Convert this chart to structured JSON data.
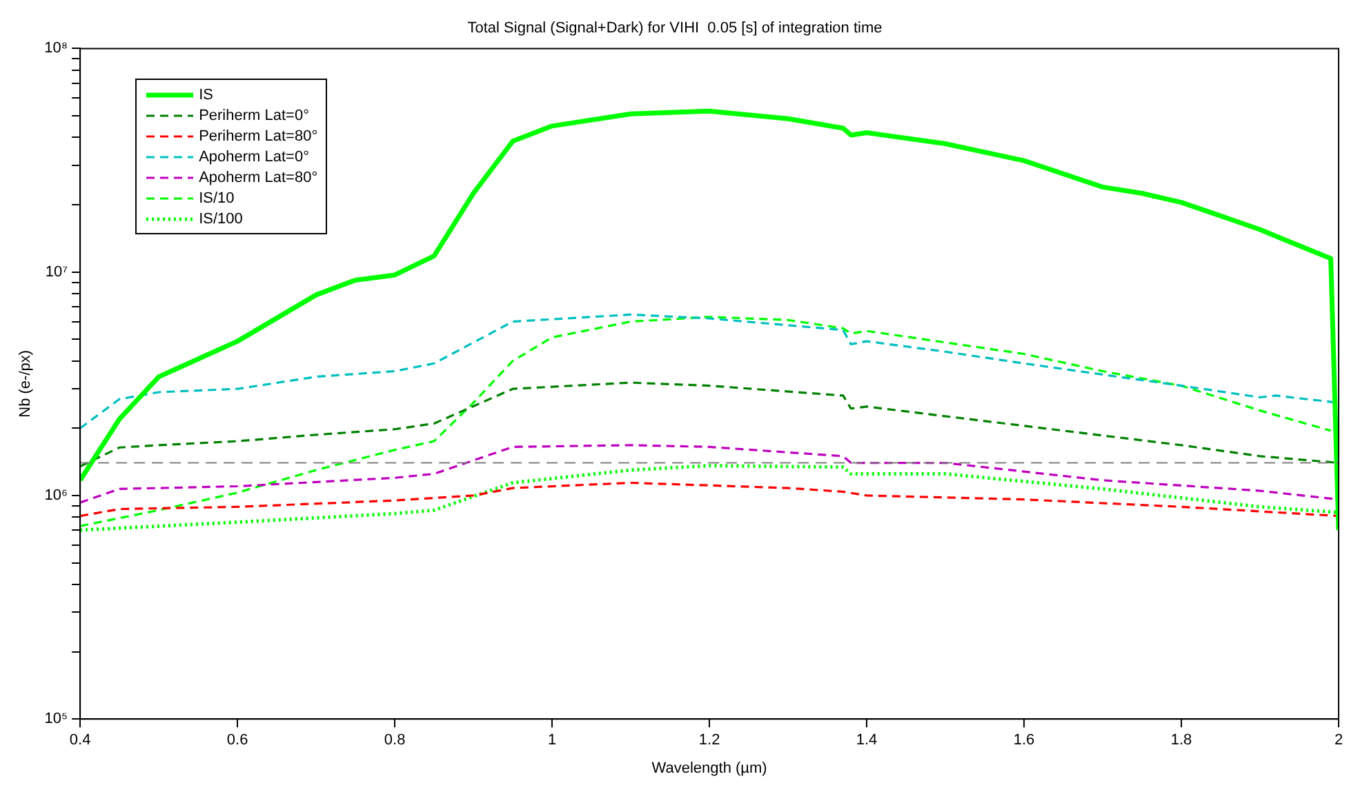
{
  "chart_data": {
    "type": "line",
    "title": "Total Signal (Signal+Dark) for VIHI  0.05 [s] of integration time",
    "xlabel": "Wavelength (µm)",
    "ylabel": "Nb (e-/px)",
    "log": "y",
    "grid": false,
    "legend": "top left",
    "marker": "none",
    "xlim": [
      0.4,
      2
    ],
    "xticks": [
      0.4,
      0.6,
      0.8,
      {
        "value": 1,
        "label": "1"
      },
      1.2,
      1.4,
      1.6,
      1.8,
      {
        "value": 2,
        "label": "2"
      }
    ],
    "ylim": [
      100000,
      100000000
    ],
    "yticks": [
      {
        "value": 100000,
        "label": "10⁵"
      },
      {
        "value": 200000,
        "label": null
      },
      {
        "value": 300000,
        "label": null
      },
      {
        "value": 400000,
        "label": null
      },
      {
        "value": 500000,
        "label": null
      },
      {
        "value": 600000,
        "label": null
      },
      {
        "value": 700000,
        "label": null
      },
      {
        "value": 800000,
        "label": null
      },
      {
        "value": 900000,
        "label": null
      },
      {
        "value": 1000000,
        "label": "10⁶"
      },
      {
        "value": 2000000,
        "label": null
      },
      {
        "value": 3000000,
        "label": null
      },
      {
        "value": 4000000,
        "label": null
      },
      {
        "value": 5000000,
        "label": null
      },
      {
        "value": 6000000,
        "label": null
      },
      {
        "value": 7000000,
        "label": null
      },
      {
        "value": 8000000,
        "label": null
      },
      {
        "value": 9000000,
        "label": null
      },
      {
        "value": 10000000,
        "label": "10⁷"
      },
      {
        "value": 20000000,
        "label": null
      },
      {
        "value": 30000000,
        "label": null
      },
      {
        "value": 40000000,
        "label": null
      },
      {
        "value": 50000000,
        "label": null
      },
      {
        "value": 60000000,
        "label": null
      },
      {
        "value": 70000000,
        "label": null
      },
      {
        "value": 80000000,
        "label": null
      },
      {
        "value": 90000000,
        "label": null
      },
      {
        "value": 100000000,
        "label": "10⁸"
      }
    ],
    "ref_lines": [
      {
        "axis": "y",
        "value": 1400000,
        "color": "#808080",
        "line_style": "dashed"
      }
    ],
    "series": [
      {
        "name": "IS",
        "color": "#00ff00",
        "line_style": "solid",
        "x": [
          0.4,
          0.45,
          0.5,
          0.6,
          0.7,
          0.75,
          0.8,
          0.85,
          0.9,
          0.95,
          1.0,
          1.1,
          1.2,
          1.3,
          1.37,
          1.38,
          1.4,
          1.5,
          1.6,
          1.7,
          1.75,
          1.8,
          1.9,
          1.93,
          1.99,
          2.0
        ],
        "values": [
          1170000,
          2200000,
          3400000,
          4900000,
          7900000,
          9200000,
          9700000,
          11800000,
          22500000,
          38500000,
          45000000,
          51000000,
          52500000,
          48500000,
          44000000,
          41000000,
          42000000,
          37500000,
          31500000,
          24000000,
          22500000,
          20500000,
          15500000,
          14000000,
          11500000,
          700000
        ]
      },
      {
        "name": "Periherm Lat=0°",
        "color": "#008000",
        "line_style": "dashed",
        "x": [
          0.4,
          0.45,
          0.5,
          0.6,
          0.7,
          0.8,
          0.85,
          0.95,
          1.1,
          1.2,
          1.37,
          1.38,
          1.4,
          1.6,
          1.8,
          1.9,
          2.0
        ],
        "values": [
          1350000,
          1640000,
          1680000,
          1750000,
          1870000,
          1980000,
          2100000,
          3000000,
          3200000,
          3100000,
          2800000,
          2450000,
          2500000,
          2050000,
          1680000,
          1500000,
          1400000
        ]
      },
      {
        "name": "Periherm Lat=80°",
        "color": "#ff0000",
        "line_style": "dashed",
        "x": [
          0.4,
          0.45,
          0.6,
          0.8,
          0.9,
          0.95,
          1.1,
          1.3,
          1.37,
          1.4,
          1.6,
          1.8,
          2.0
        ],
        "values": [
          810000,
          870000,
          890000,
          950000,
          1000000,
          1080000,
          1140000,
          1080000,
          1040000,
          1000000,
          960000,
          890000,
          810000
        ]
      },
      {
        "name": "Apoherm Lat=0°",
        "color": "#00bfbf",
        "line_style": "dashed",
        "x": [
          0.4,
          0.45,
          0.5,
          0.6,
          0.7,
          0.8,
          0.85,
          0.95,
          1.1,
          1.2,
          1.37,
          1.38,
          1.4,
          1.5,
          1.6,
          1.8,
          1.9,
          1.92,
          2.0
        ],
        "values": [
          2000000,
          2700000,
          2900000,
          3000000,
          3400000,
          3600000,
          3900000,
          6000000,
          6450000,
          6200000,
          5500000,
          4750000,
          4900000,
          4400000,
          3900000,
          3100000,
          2750000,
          2800000,
          2600000
        ]
      },
      {
        "name": "Apoherm Lat=80°",
        "color": "#bf00bf",
        "line_style": "dashed",
        "x": [
          0.4,
          0.45,
          0.6,
          0.8,
          0.85,
          0.95,
          1.1,
          1.2,
          1.37,
          1.38,
          1.5,
          1.7,
          1.9,
          2.0
        ],
        "values": [
          930000,
          1070000,
          1100000,
          1200000,
          1250000,
          1650000,
          1680000,
          1650000,
          1500000,
          1400000,
          1400000,
          1170000,
          1050000,
          960000
        ]
      },
      {
        "name": "IS/10",
        "color": "#00ff00",
        "line_style": "dashed",
        "x": [
          0.4,
          0.5,
          0.6,
          0.7,
          0.8,
          0.85,
          0.9,
          0.95,
          1.0,
          1.1,
          1.2,
          1.3,
          1.37,
          1.38,
          1.4,
          1.6,
          1.7,
          1.8,
          1.9,
          1.99
        ],
        "values": [
          730000,
          860000,
          1030000,
          1300000,
          1600000,
          1750000,
          2600000,
          4000000,
          5100000,
          6000000,
          6300000,
          6100000,
          5600000,
          5300000,
          5450000,
          4300000,
          3600000,
          3100000,
          2400000,
          1950000
        ]
      },
      {
        "name": "IS/100",
        "color": "#00ff00",
        "line_style": "dotted",
        "x": [
          0.4,
          0.6,
          0.8,
          0.85,
          0.95,
          1.1,
          1.2,
          1.37,
          1.38,
          1.5,
          1.7,
          1.9,
          2.0
        ],
        "values": [
          700000,
          760000,
          830000,
          860000,
          1140000,
          1300000,
          1360000,
          1340000,
          1250000,
          1250000,
          1070000,
          890000,
          840000
        ]
      }
    ]
  }
}
